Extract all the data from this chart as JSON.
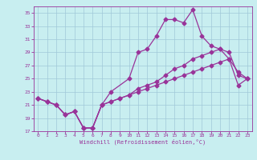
{
  "xlabel": "Windchill (Refroidissement éolien,°C)",
  "bg_color": "#c8eef0",
  "grid_color": "#a0c8d8",
  "line_color": "#993399",
  "xlim": [
    -0.5,
    23.5
  ],
  "ylim": [
    17,
    36
  ],
  "xticks": [
    0,
    1,
    2,
    3,
    4,
    5,
    6,
    7,
    8,
    9,
    10,
    11,
    12,
    13,
    14,
    15,
    16,
    17,
    18,
    19,
    20,
    21,
    22,
    23
  ],
  "yticks": [
    17,
    19,
    21,
    23,
    25,
    27,
    29,
    31,
    33,
    35
  ],
  "series_high": {
    "x": [
      0,
      1,
      2,
      3,
      4,
      5,
      6,
      7,
      8,
      10,
      11,
      12,
      13,
      14,
      15,
      16,
      17,
      18,
      19,
      20,
      21,
      22,
      23
    ],
    "y": [
      22,
      21.5,
      21,
      19.5,
      20,
      17.5,
      17.5,
      21,
      23,
      25,
      29,
      29.5,
      31.5,
      34,
      34,
      33.5,
      35.5,
      31.5,
      30,
      29.5,
      28,
      26,
      25
    ]
  },
  "series_mid": {
    "x": [
      0,
      1,
      2,
      3,
      4,
      5,
      6,
      7,
      8,
      9,
      10,
      11,
      12,
      13,
      14,
      15,
      16,
      17,
      18,
      19,
      20,
      21,
      22,
      23
    ],
    "y": [
      22,
      21.5,
      21,
      19.5,
      20,
      17.5,
      17.5,
      21,
      21.5,
      22,
      22.5,
      23.5,
      24,
      24.5,
      25.5,
      26.5,
      27,
      28,
      28.5,
      29,
      29.5,
      29,
      25.5,
      25
    ]
  },
  "series_low": {
    "x": [
      0,
      1,
      2,
      3,
      4,
      5,
      6,
      7,
      8,
      9,
      10,
      11,
      12,
      13,
      14,
      15,
      16,
      17,
      18,
      19,
      20,
      21,
      22,
      23
    ],
    "y": [
      22,
      21.5,
      21,
      19.5,
      20,
      17.5,
      17.5,
      21,
      21.5,
      22,
      22.5,
      23,
      23.5,
      24,
      24.5,
      25,
      25.5,
      26,
      26.5,
      27,
      27.5,
      28,
      24,
      25
    ]
  }
}
